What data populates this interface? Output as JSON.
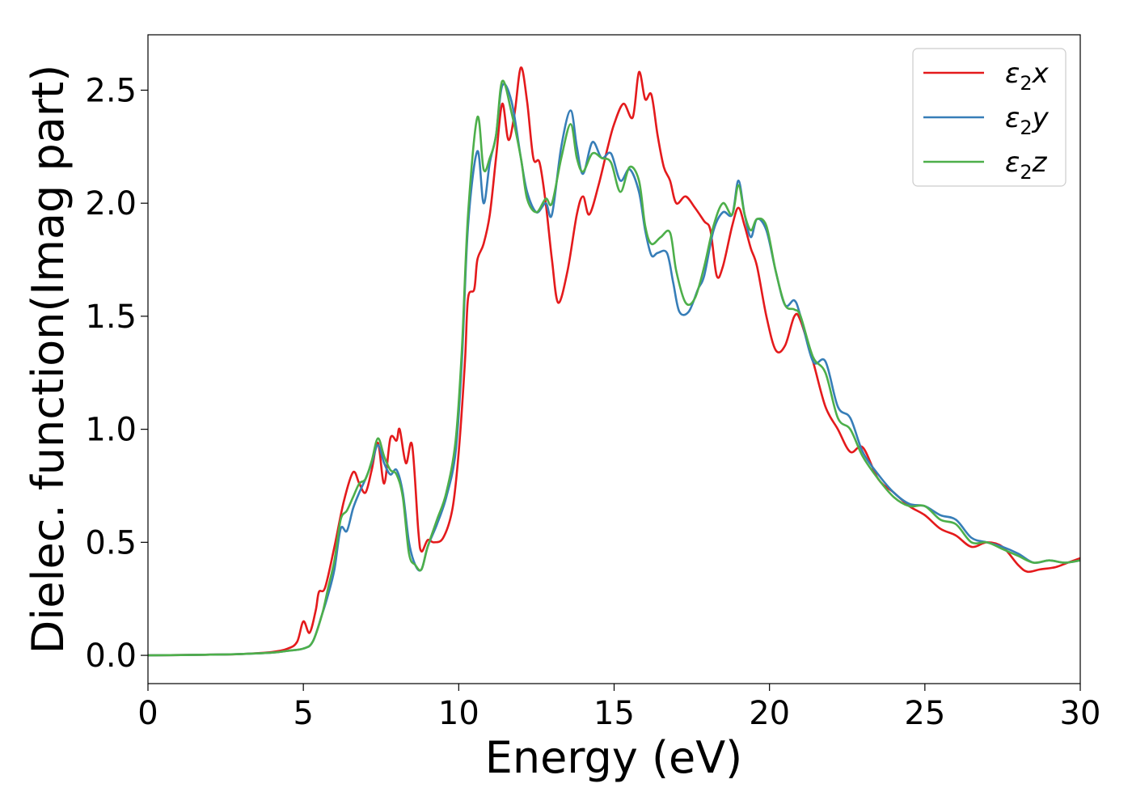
{
  "chart_data": {
    "type": "line",
    "xlabel": "Energy (eV)",
    "ylabel": "Dielec. function(Imag part)",
    "xlim": [
      0,
      30
    ],
    "ylim": [
      -0.125,
      2.745
    ],
    "xticks": [
      0,
      5,
      10,
      15,
      20,
      25,
      30
    ],
    "xtick_labels": [
      "0",
      "5",
      "10",
      "15",
      "20",
      "25",
      "30"
    ],
    "yticks": [
      0.0,
      0.5,
      1.0,
      1.5,
      2.0,
      2.5
    ],
    "ytick_labels": [
      "0.0",
      "0.5",
      "1.0",
      "1.5",
      "2.0",
      "2.5"
    ],
    "grid": false,
    "legend_position": "top-right",
    "series": [
      {
        "name": "ε₂x",
        "legend_base": "ε",
        "legend_sub": "2",
        "legend_tail": "x",
        "color": "#e41a1c",
        "points": [
          [
            0,
            0
          ],
          [
            2,
            0.003
          ],
          [
            3,
            0.006
          ],
          [
            4,
            0.015
          ],
          [
            4.5,
            0.03
          ],
          [
            4.8,
            0.06
          ],
          [
            5.0,
            0.15
          ],
          [
            5.2,
            0.1
          ],
          [
            5.4,
            0.2
          ],
          [
            5.5,
            0.28
          ],
          [
            5.7,
            0.3
          ],
          [
            6.0,
            0.48
          ],
          [
            6.3,
            0.68
          ],
          [
            6.6,
            0.81
          ],
          [
            6.8,
            0.76
          ],
          [
            7.0,
            0.72
          ],
          [
            7.2,
            0.82
          ],
          [
            7.4,
            0.94
          ],
          [
            7.6,
            0.76
          ],
          [
            7.8,
            0.96
          ],
          [
            8.0,
            0.95
          ],
          [
            8.1,
            1.0
          ],
          [
            8.3,
            0.85
          ],
          [
            8.5,
            0.93
          ],
          [
            8.7,
            0.55
          ],
          [
            8.8,
            0.46
          ],
          [
            9.0,
            0.51
          ],
          [
            9.2,
            0.5
          ],
          [
            9.5,
            0.52
          ],
          [
            9.8,
            0.65
          ],
          [
            10.0,
            0.9
          ],
          [
            10.2,
            1.3
          ],
          [
            10.3,
            1.58
          ],
          [
            10.5,
            1.62
          ],
          [
            10.6,
            1.75
          ],
          [
            10.8,
            1.82
          ],
          [
            11.0,
            1.95
          ],
          [
            11.2,
            2.2
          ],
          [
            11.4,
            2.44
          ],
          [
            11.6,
            2.28
          ],
          [
            11.8,
            2.4
          ],
          [
            12.0,
            2.6
          ],
          [
            12.2,
            2.45
          ],
          [
            12.4,
            2.2
          ],
          [
            12.6,
            2.18
          ],
          [
            12.8,
            2.0
          ],
          [
            13.0,
            1.75
          ],
          [
            13.2,
            1.56
          ],
          [
            13.5,
            1.7
          ],
          [
            13.8,
            1.95
          ],
          [
            14.0,
            2.03
          ],
          [
            14.2,
            1.95
          ],
          [
            14.5,
            2.08
          ],
          [
            14.8,
            2.25
          ],
          [
            15.0,
            2.35
          ],
          [
            15.3,
            2.44
          ],
          [
            15.6,
            2.38
          ],
          [
            15.8,
            2.58
          ],
          [
            16.0,
            2.46
          ],
          [
            16.2,
            2.48
          ],
          [
            16.4,
            2.3
          ],
          [
            16.6,
            2.16
          ],
          [
            16.8,
            2.1
          ],
          [
            17.0,
            2.0
          ],
          [
            17.3,
            2.03
          ],
          [
            17.6,
            1.98
          ],
          [
            17.9,
            1.92
          ],
          [
            18.1,
            1.88
          ],
          [
            18.3,
            1.68
          ],
          [
            18.5,
            1.72
          ],
          [
            18.8,
            1.9
          ],
          [
            19.0,
            1.98
          ],
          [
            19.2,
            1.9
          ],
          [
            19.4,
            1.8
          ],
          [
            19.6,
            1.72
          ],
          [
            19.9,
            1.5
          ],
          [
            20.2,
            1.35
          ],
          [
            20.5,
            1.37
          ],
          [
            20.8,
            1.5
          ],
          [
            21.0,
            1.48
          ],
          [
            21.4,
            1.3
          ],
          [
            21.8,
            1.1
          ],
          [
            22.2,
            1.0
          ],
          [
            22.6,
            0.9
          ],
          [
            23.0,
            0.92
          ],
          [
            23.5,
            0.78
          ],
          [
            24.0,
            0.72
          ],
          [
            24.5,
            0.66
          ],
          [
            25.0,
            0.62
          ],
          [
            25.5,
            0.56
          ],
          [
            26.0,
            0.53
          ],
          [
            26.5,
            0.48
          ],
          [
            27.0,
            0.5
          ],
          [
            27.5,
            0.48
          ],
          [
            28.0,
            0.4
          ],
          [
            28.3,
            0.37
          ],
          [
            28.7,
            0.38
          ],
          [
            29.2,
            0.39
          ],
          [
            29.6,
            0.41
          ],
          [
            30.0,
            0.43
          ]
        ]
      },
      {
        "name": "ε₂y",
        "legend_base": "ε",
        "legend_sub": "2",
        "legend_tail": "y",
        "color": "#377eb8",
        "points": [
          [
            0,
            0
          ],
          [
            2,
            0.003
          ],
          [
            3,
            0.006
          ],
          [
            4,
            0.012
          ],
          [
            4.5,
            0.02
          ],
          [
            5.0,
            0.03
          ],
          [
            5.3,
            0.06
          ],
          [
            5.6,
            0.18
          ],
          [
            5.8,
            0.27
          ],
          [
            6.0,
            0.38
          ],
          [
            6.2,
            0.56
          ],
          [
            6.4,
            0.55
          ],
          [
            6.6,
            0.65
          ],
          [
            6.8,
            0.72
          ],
          [
            7.0,
            0.78
          ],
          [
            7.2,
            0.85
          ],
          [
            7.4,
            0.93
          ],
          [
            7.6,
            0.85
          ],
          [
            7.8,
            0.8
          ],
          [
            8.0,
            0.82
          ],
          [
            8.2,
            0.72
          ],
          [
            8.4,
            0.5
          ],
          [
            8.6,
            0.4
          ],
          [
            8.8,
            0.38
          ],
          [
            9.0,
            0.48
          ],
          [
            9.3,
            0.58
          ],
          [
            9.6,
            0.7
          ],
          [
            9.9,
            0.9
          ],
          [
            10.1,
            1.3
          ],
          [
            10.3,
            1.9
          ],
          [
            10.6,
            2.23
          ],
          [
            10.8,
            2.0
          ],
          [
            11.0,
            2.18
          ],
          [
            11.2,
            2.3
          ],
          [
            11.4,
            2.52
          ],
          [
            11.7,
            2.45
          ],
          [
            12.0,
            2.2
          ],
          [
            12.2,
            2.05
          ],
          [
            12.5,
            1.96
          ],
          [
            12.8,
            2.0
          ],
          [
            13.0,
            1.95
          ],
          [
            13.3,
            2.25
          ],
          [
            13.6,
            2.41
          ],
          [
            13.8,
            2.25
          ],
          [
            14.0,
            2.13
          ],
          [
            14.3,
            2.27
          ],
          [
            14.6,
            2.2
          ],
          [
            14.9,
            2.22
          ],
          [
            15.2,
            2.1
          ],
          [
            15.5,
            2.15
          ],
          [
            15.8,
            2.05
          ],
          [
            16.0,
            1.88
          ],
          [
            16.2,
            1.77
          ],
          [
            16.4,
            1.78
          ],
          [
            16.7,
            1.78
          ],
          [
            16.9,
            1.65
          ],
          [
            17.1,
            1.52
          ],
          [
            17.4,
            1.52
          ],
          [
            17.7,
            1.62
          ],
          [
            17.9,
            1.68
          ],
          [
            18.2,
            1.88
          ],
          [
            18.5,
            1.96
          ],
          [
            18.8,
            1.95
          ],
          [
            19.0,
            2.1
          ],
          [
            19.2,
            1.95
          ],
          [
            19.4,
            1.85
          ],
          [
            19.6,
            1.93
          ],
          [
            19.9,
            1.88
          ],
          [
            20.2,
            1.7
          ],
          [
            20.5,
            1.55
          ],
          [
            20.8,
            1.57
          ],
          [
            21.0,
            1.5
          ],
          [
            21.4,
            1.3
          ],
          [
            21.8,
            1.3
          ],
          [
            22.2,
            1.1
          ],
          [
            22.6,
            1.05
          ],
          [
            23.0,
            0.9
          ],
          [
            23.5,
            0.8
          ],
          [
            24.0,
            0.72
          ],
          [
            24.5,
            0.67
          ],
          [
            25.0,
            0.66
          ],
          [
            25.5,
            0.62
          ],
          [
            26.0,
            0.6
          ],
          [
            26.5,
            0.52
          ],
          [
            27.0,
            0.5
          ],
          [
            27.5,
            0.48
          ],
          [
            28.0,
            0.45
          ],
          [
            28.5,
            0.41
          ],
          [
            29.0,
            0.42
          ],
          [
            29.5,
            0.41
          ],
          [
            30.0,
            0.42
          ]
        ]
      },
      {
        "name": "ε₂z",
        "legend_base": "ε",
        "legend_sub": "2",
        "legend_tail": "z",
        "color": "#4daf4a",
        "points": [
          [
            0,
            0
          ],
          [
            2,
            0.003
          ],
          [
            3,
            0.006
          ],
          [
            4,
            0.012
          ],
          [
            4.5,
            0.02
          ],
          [
            5.0,
            0.03
          ],
          [
            5.3,
            0.06
          ],
          [
            5.6,
            0.18
          ],
          [
            5.8,
            0.3
          ],
          [
            6.0,
            0.42
          ],
          [
            6.2,
            0.6
          ],
          [
            6.4,
            0.64
          ],
          [
            6.6,
            0.7
          ],
          [
            6.8,
            0.76
          ],
          [
            7.0,
            0.78
          ],
          [
            7.2,
            0.86
          ],
          [
            7.4,
            0.96
          ],
          [
            7.6,
            0.88
          ],
          [
            7.8,
            0.82
          ],
          [
            8.0,
            0.8
          ],
          [
            8.2,
            0.7
          ],
          [
            8.4,
            0.45
          ],
          [
            8.6,
            0.4
          ],
          [
            8.8,
            0.38
          ],
          [
            9.0,
            0.48
          ],
          [
            9.3,
            0.6
          ],
          [
            9.6,
            0.72
          ],
          [
            9.9,
            0.95
          ],
          [
            10.1,
            1.35
          ],
          [
            10.3,
            1.95
          ],
          [
            10.6,
            2.38
          ],
          [
            10.8,
            2.15
          ],
          [
            11.0,
            2.2
          ],
          [
            11.2,
            2.3
          ],
          [
            11.4,
            2.54
          ],
          [
            11.7,
            2.4
          ],
          [
            12.0,
            2.2
          ],
          [
            12.2,
            2.02
          ],
          [
            12.5,
            1.96
          ],
          [
            12.8,
            2.02
          ],
          [
            13.0,
            2.0
          ],
          [
            13.3,
            2.2
          ],
          [
            13.6,
            2.35
          ],
          [
            13.8,
            2.2
          ],
          [
            14.0,
            2.14
          ],
          [
            14.3,
            2.22
          ],
          [
            14.6,
            2.2
          ],
          [
            14.9,
            2.18
          ],
          [
            15.2,
            2.05
          ],
          [
            15.5,
            2.16
          ],
          [
            15.8,
            2.1
          ],
          [
            16.0,
            1.9
          ],
          [
            16.2,
            1.82
          ],
          [
            16.5,
            1.85
          ],
          [
            16.8,
            1.87
          ],
          [
            17.0,
            1.7
          ],
          [
            17.3,
            1.56
          ],
          [
            17.6,
            1.58
          ],
          [
            17.9,
            1.72
          ],
          [
            18.2,
            1.9
          ],
          [
            18.5,
            2.0
          ],
          [
            18.8,
            1.95
          ],
          [
            19.0,
            2.08
          ],
          [
            19.2,
            1.95
          ],
          [
            19.4,
            1.88
          ],
          [
            19.6,
            1.93
          ],
          [
            19.9,
            1.9
          ],
          [
            20.2,
            1.7
          ],
          [
            20.5,
            1.55
          ],
          [
            20.8,
            1.53
          ],
          [
            21.0,
            1.5
          ],
          [
            21.4,
            1.32
          ],
          [
            21.8,
            1.25
          ],
          [
            22.2,
            1.05
          ],
          [
            22.6,
            1.0
          ],
          [
            23.0,
            0.88
          ],
          [
            23.5,
            0.78
          ],
          [
            24.0,
            0.7
          ],
          [
            24.5,
            0.66
          ],
          [
            25.0,
            0.66
          ],
          [
            25.5,
            0.6
          ],
          [
            26.0,
            0.58
          ],
          [
            26.5,
            0.5
          ],
          [
            27.0,
            0.5
          ],
          [
            27.5,
            0.47
          ],
          [
            28.0,
            0.44
          ],
          [
            28.5,
            0.41
          ],
          [
            29.0,
            0.42
          ],
          [
            29.5,
            0.41
          ],
          [
            30.0,
            0.42
          ]
        ]
      }
    ]
  }
}
